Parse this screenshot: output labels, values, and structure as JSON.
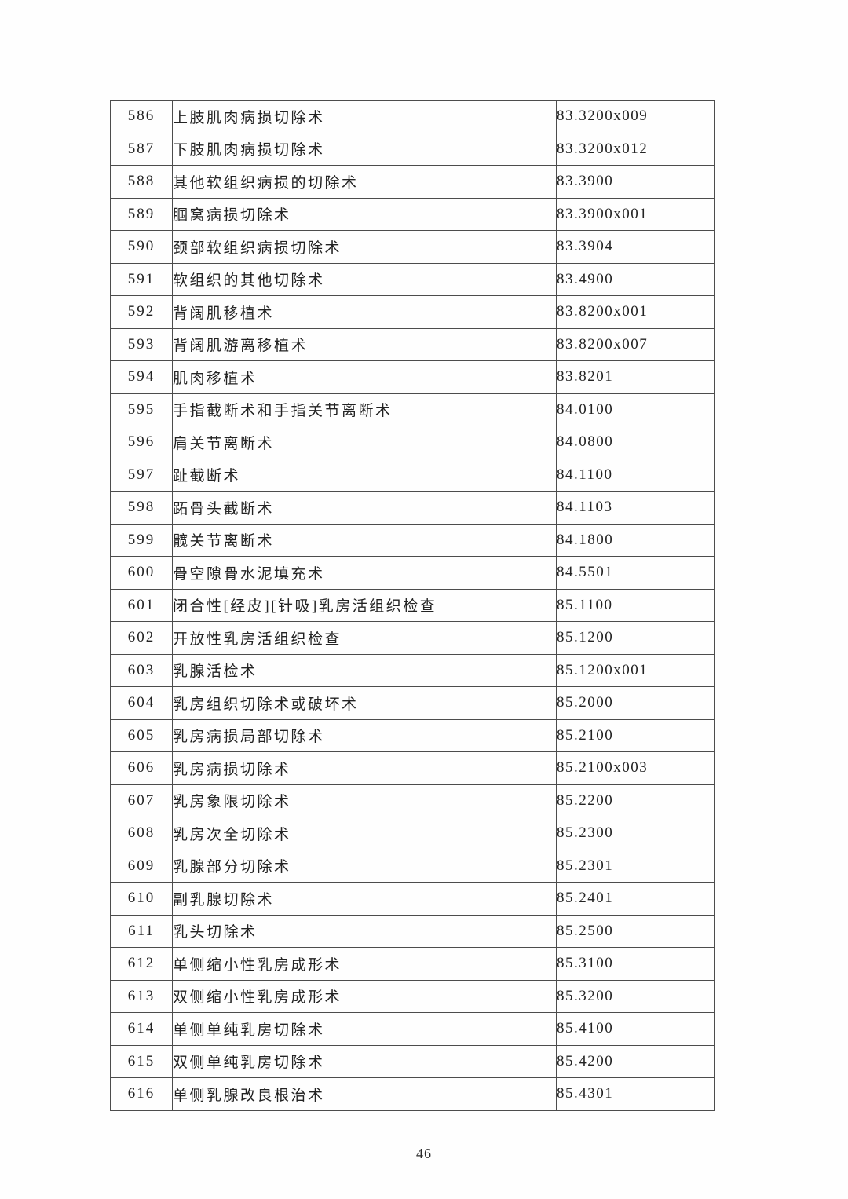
{
  "document": {
    "page_number": "46",
    "text_color": "#232323",
    "border_color": "#4c4c4c",
    "background_color": "#fefefe"
  },
  "table": {
    "rows": [
      {
        "no": "586",
        "name": "上肢肌肉病损切除术",
        "code": "83.3200x009"
      },
      {
        "no": "587",
        "name": "下肢肌肉病损切除术",
        "code": "83.3200x012"
      },
      {
        "no": "588",
        "name": "其他软组织病损的切除术",
        "code": "83.3900"
      },
      {
        "no": "589",
        "name": "腘窝病损切除术",
        "code": "83.3900x001"
      },
      {
        "no": "590",
        "name": "颈部软组织病损切除术",
        "code": "83.3904"
      },
      {
        "no": "591",
        "name": "软组织的其他切除术",
        "code": "83.4900"
      },
      {
        "no": "592",
        "name": "背阔肌移植术",
        "code": "83.8200x001"
      },
      {
        "no": "593",
        "name": "背阔肌游离移植术",
        "code": "83.8200x007"
      },
      {
        "no": "594",
        "name": "肌肉移植术",
        "code": "83.8201"
      },
      {
        "no": "595",
        "name": "手指截断术和手指关节离断术",
        "code": "84.0100"
      },
      {
        "no": "596",
        "name": "肩关节离断术",
        "code": "84.0800"
      },
      {
        "no": "597",
        "name": "趾截断术",
        "code": "84.1100"
      },
      {
        "no": "598",
        "name": "跖骨头截断术",
        "code": "84.1103"
      },
      {
        "no": "599",
        "name": "髋关节离断术",
        "code": "84.1800"
      },
      {
        "no": "600",
        "name": "骨空隙骨水泥填充术",
        "code": "84.5501"
      },
      {
        "no": "601",
        "name": "闭合性[经皮][针吸]乳房活组织检查",
        "code": "85.1100"
      },
      {
        "no": "602",
        "name": "开放性乳房活组织检查",
        "code": "85.1200"
      },
      {
        "no": "603",
        "name": "乳腺活检术",
        "code": "85.1200x001"
      },
      {
        "no": "604",
        "name": "乳房组织切除术或破坏术",
        "code": "85.2000"
      },
      {
        "no": "605",
        "name": "乳房病损局部切除术",
        "code": "85.2100"
      },
      {
        "no": "606",
        "name": "乳房病损切除术",
        "code": "85.2100x003"
      },
      {
        "no": "607",
        "name": "乳房象限切除术",
        "code": "85.2200"
      },
      {
        "no": "608",
        "name": "乳房次全切除术",
        "code": "85.2300"
      },
      {
        "no": "609",
        "name": "乳腺部分切除术",
        "code": "85.2301"
      },
      {
        "no": "610",
        "name": "副乳腺切除术",
        "code": "85.2401"
      },
      {
        "no": "611",
        "name": "乳头切除术",
        "code": "85.2500"
      },
      {
        "no": "612",
        "name": "单侧缩小性乳房成形术",
        "code": "85.3100"
      },
      {
        "no": "613",
        "name": "双侧缩小性乳房成形术",
        "code": "85.3200"
      },
      {
        "no": "614",
        "name": "单侧单纯乳房切除术",
        "code": "85.4100"
      },
      {
        "no": "615",
        "name": "双侧单纯乳房切除术",
        "code": "85.4200"
      },
      {
        "no": "616",
        "name": "单侧乳腺改良根治术",
        "code": "85.4301"
      }
    ]
  }
}
